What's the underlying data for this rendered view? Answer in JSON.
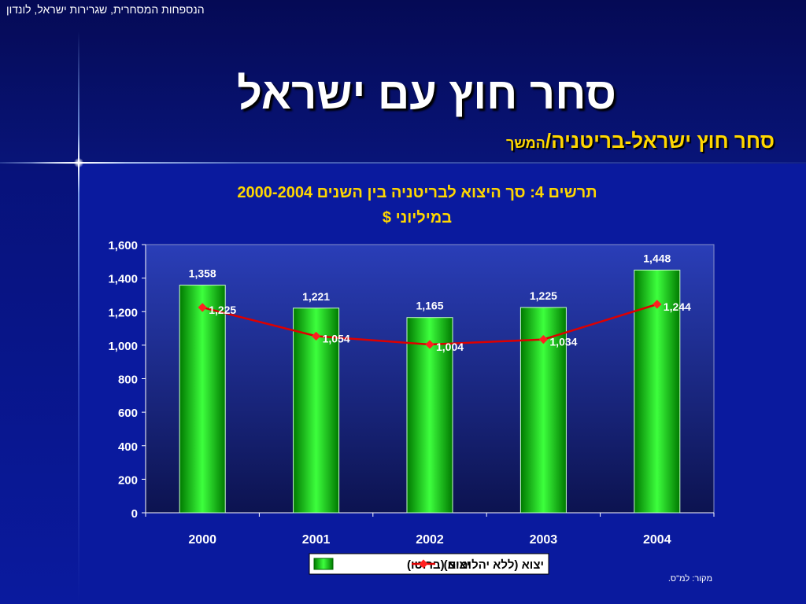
{
  "header": {
    "org": "הנספחות המסחרית, שגרירות ישראל, לונדון",
    "title": "סחר חוץ עם ישראל",
    "subtitle_main": "סחר חוץ ישראל-בריטניה/",
    "subtitle_suffix": "המשך"
  },
  "colors": {
    "background": "#0a1a9e",
    "bar": "#00cc00",
    "line": "#dd0000",
    "title_accent": "#ffd700"
  },
  "chart_data": {
    "type": "bar",
    "title_line1": "תרשים 4: סך היצוא לבריטניה בין השנים 2000-2004",
    "title_line2": "במיליוני $",
    "categories": [
      "2000",
      "2001",
      "2002",
      "2003",
      "2004"
    ],
    "ylim": [
      0,
      1600
    ],
    "yticks": [
      "0",
      "200",
      "400",
      "600",
      "800",
      "1,000",
      "1,200",
      "1,400",
      "1,600"
    ],
    "series": [
      {
        "name": "יצוא (ברוטו)",
        "kind": "bar",
        "values": [
          1358,
          1221,
          1165,
          1225,
          1448
        ],
        "labels": [
          "1,358",
          "1,221",
          "1,165",
          "1,225",
          "1,448"
        ]
      },
      {
        "name": "יצוא (ללא יהלומים)",
        "kind": "line",
        "values": [
          1225,
          1054,
          1004,
          1034,
          1244
        ],
        "labels": [
          "1,225",
          "1,054",
          "1,004",
          "1,034",
          "1,244"
        ]
      }
    ],
    "legend": "bottom-center",
    "grid": false,
    "source": "מקור: למ\"ס."
  }
}
